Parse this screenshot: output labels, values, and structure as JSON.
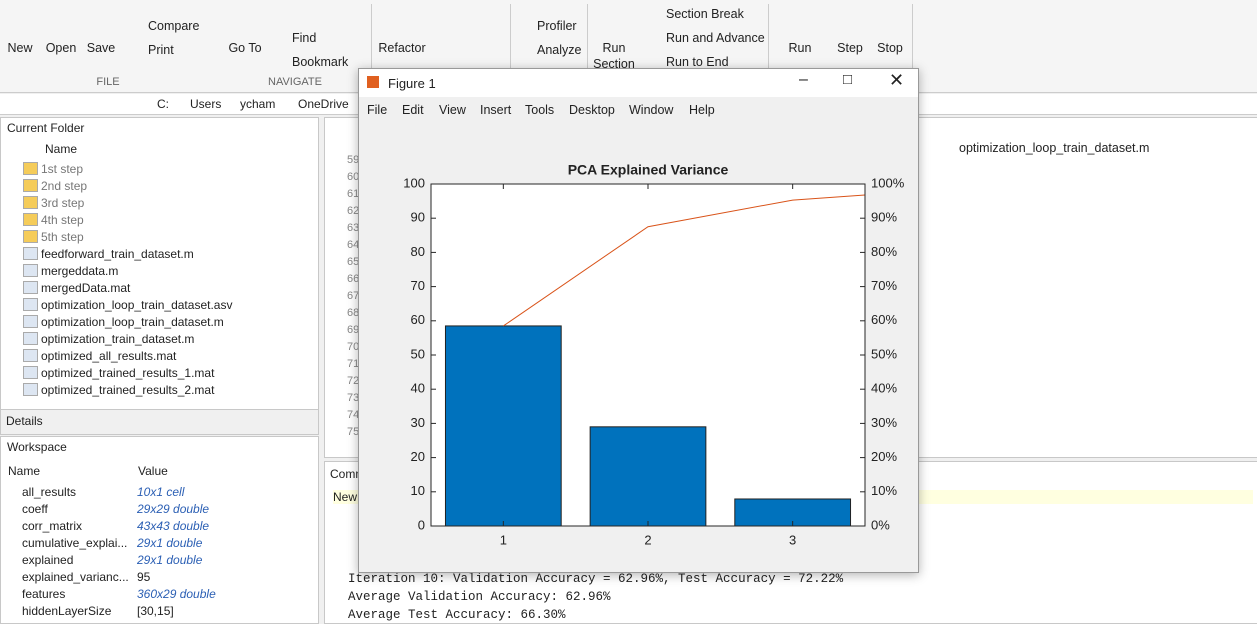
{
  "toolstrip": {
    "buttons": [
      "New",
      "Open",
      "Save",
      "Compare",
      "Print",
      "Go To",
      "Find",
      "Bookmark",
      "Refactor",
      "Profiler",
      "Analyze",
      "Run Section",
      "Section Break",
      "Run and Advance",
      "Run to End",
      "Run",
      "Step",
      "Stop"
    ],
    "sections": [
      "FILE",
      "NAVIGATE"
    ]
  },
  "address": {
    "path": [
      "C:",
      "Users",
      "ycham",
      "OneDrive"
    ]
  },
  "current_folder": {
    "title": "Current Folder",
    "column": "Name",
    "items": [
      "1st step",
      "2nd step",
      "3rd step",
      "4th step",
      "5th step",
      "feedforward_train_dataset.m",
      "mergeddata.m",
      "mergedData.mat",
      "optimization_loop_train_dataset.asv",
      "optimization_loop_train_dataset.m",
      "optimization_train_dataset.m",
      "optimized_all_results.mat",
      "optimized_trained_results_1.mat",
      "optimized_trained_results_2.mat"
    ]
  },
  "details": {
    "title": "Details"
  },
  "workspace": {
    "title": "Workspace",
    "columns": [
      "Name",
      "Value"
    ],
    "rows": [
      [
        "all_results",
        "10x1 cell"
      ],
      [
        "coeff",
        "29x29 double"
      ],
      [
        "corr_matrix",
        "43x43 double"
      ],
      [
        "cumulative_explai...",
        "29x1 double"
      ],
      [
        "explained",
        "29x1 double"
      ],
      [
        "explained_varianc...",
        "95"
      ],
      [
        "features",
        "360x29 double"
      ],
      [
        "hiddenLayerSize",
        "[30,15]"
      ]
    ]
  },
  "editor": {
    "tab": "optimization_loop_train_dataset.m",
    "line_numbers": [
      "59",
      "60",
      "61",
      "62",
      "63",
      "64",
      "65",
      "66",
      "67",
      "68",
      "69",
      "70",
      "71",
      "72",
      "73",
      "74",
      "75"
    ]
  },
  "command_window": {
    "title": "Command Window",
    "banner": "New",
    "lines": [
      "Iteration 10: Validation Accuracy = 62.96%, Test Accuracy = 72.22%",
      "Average Validation Accuracy: 62.96%",
      "Average Test Accuracy: 66.30%"
    ]
  },
  "figure": {
    "title": "Figure 1",
    "menu": [
      "File",
      "Edit",
      "View",
      "Insert",
      "Tools",
      "Desktop",
      "Window",
      "Help"
    ]
  },
  "chart_data": {
    "type": "pareto",
    "title": "PCA Explained Variance",
    "categories": [
      1,
      2,
      3
    ],
    "values": [
      58.5,
      29,
      7.9
    ],
    "color": "#0072bd",
    "line": {
      "x": [
        1,
        2,
        3,
        3.5
      ],
      "values": [
        58.5,
        87.5,
        95.3,
        96.8
      ],
      "color": "#d95319",
      "axis": "y2"
    },
    "xlim": [
      0.5,
      3.5
    ],
    "xticks": [
      1,
      2,
      3
    ],
    "ylim": [
      0,
      100
    ],
    "yticks": [
      0,
      10,
      20,
      30,
      40,
      50,
      60,
      70,
      80,
      90,
      100
    ],
    "y2lim": [
      0,
      100
    ],
    "y2ticks": [
      {
        "value": 0,
        "label": "0%"
      },
      {
        "value": 10,
        "label": "10%"
      },
      {
        "value": 20,
        "label": "20%"
      },
      {
        "value": 30,
        "label": "30%"
      },
      {
        "value": 40,
        "label": "40%"
      },
      {
        "value": 50,
        "label": "50%"
      },
      {
        "value": 60,
        "label": "60%"
      },
      {
        "value": 70,
        "label": "70%"
      },
      {
        "value": 80,
        "label": "80%"
      },
      {
        "value": 90,
        "label": "90%"
      },
      {
        "value": 100,
        "label": "100%"
      }
    ]
  }
}
